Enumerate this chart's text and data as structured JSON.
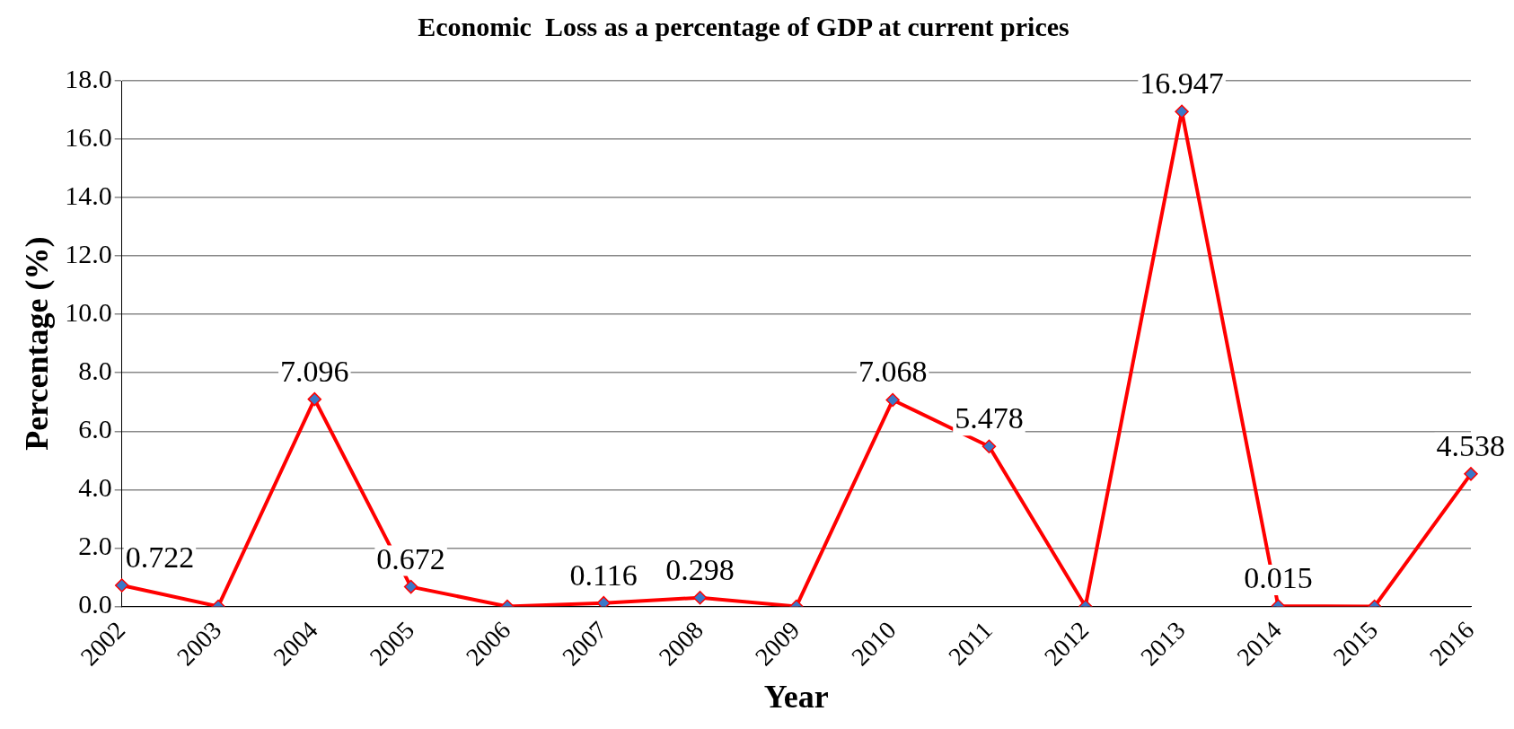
{
  "chart_data": {
    "type": "line",
    "title": "Economic  Loss as a percentage of GDP at current prices",
    "xlabel": "Year",
    "ylabel": "Percentage (%)",
    "categories": [
      "2002",
      "2003",
      "2004",
      "2005",
      "2006",
      "2007",
      "2008",
      "2009",
      "2010",
      "2011",
      "2012",
      "2013",
      "2014",
      "2015",
      "2016"
    ],
    "series": [
      {
        "color": "#ff0000",
        "values": [
          0.722,
          0,
          7.096,
          0.672,
          0,
          0.116,
          0.298,
          0,
          7.068,
          5.478,
          0,
          16.947,
          0.015,
          0,
          4.538
        ],
        "value_labels": [
          "0.722",
          null,
          "7.096",
          "0.672",
          null,
          "0.116",
          "0.298",
          null,
          "7.068",
          "5.478",
          null,
          "16.947",
          "0.015",
          null,
          "4.538"
        ]
      }
    ],
    "ylim": [
      0,
      18
    ],
    "yticks": [
      {
        "value": 0,
        "label": "0.0"
      },
      {
        "value": 2,
        "label": "2.0"
      },
      {
        "value": 4,
        "label": "4.0"
      },
      {
        "value": 6,
        "label": "6.0"
      },
      {
        "value": 8,
        "label": "8.0"
      },
      {
        "value": 10,
        "label": "10.0"
      },
      {
        "value": 12,
        "label": "12.0"
      },
      {
        "value": 14,
        "label": "14.0"
      },
      {
        "value": 16,
        "label": "16.0"
      },
      {
        "value": 18,
        "label": "18.0"
      }
    ],
    "grid": "y",
    "legend": false,
    "marker": "diamond",
    "line_style": "solid"
  }
}
